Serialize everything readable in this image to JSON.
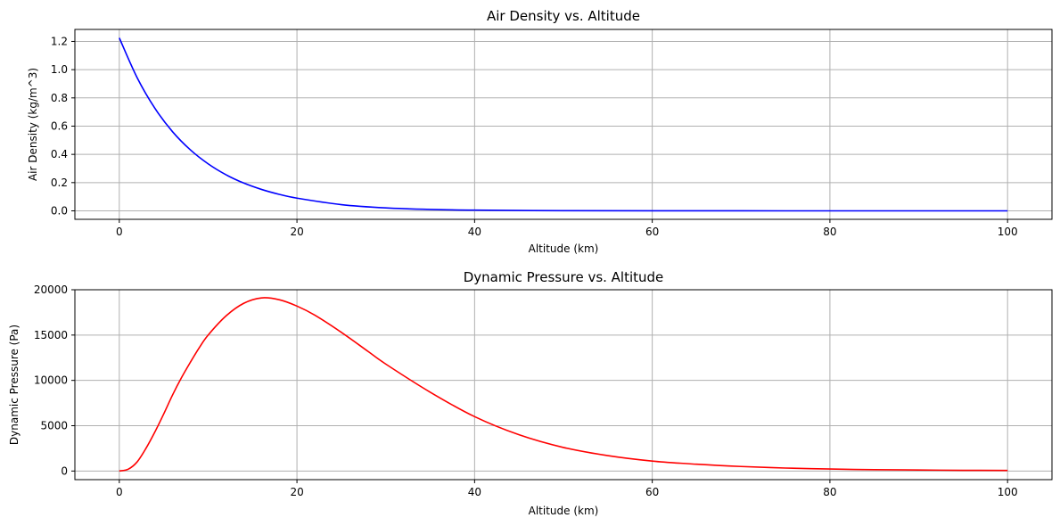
{
  "chart_data": [
    {
      "type": "line",
      "title": "Air Density vs. Altitude",
      "xlabel": "Altitude (km)",
      "ylabel": "Air Density (kg/m^3)",
      "xlim": [
        -5,
        105
      ],
      "ylim": [
        -0.06,
        1.285
      ],
      "xticks": [
        0,
        20,
        40,
        60,
        80,
        100
      ],
      "yticks": [
        0.0,
        0.2,
        0.4,
        0.6,
        0.8,
        1.0,
        1.2
      ],
      "ytick_labels": [
        "0.0",
        "0.2",
        "0.4",
        "0.6",
        "0.8",
        "1.0",
        "1.2"
      ],
      "grid": true,
      "series": [
        {
          "color": "#0000ff",
          "x": [
            0,
            2,
            4,
            6,
            8,
            10,
            12,
            14,
            16,
            18,
            20,
            25,
            30,
            35,
            40,
            50,
            60,
            70,
            80,
            90,
            100
          ],
          "y": [
            1.225,
            0.944,
            0.727,
            0.56,
            0.432,
            0.333,
            0.256,
            0.197,
            0.152,
            0.117,
            0.09,
            0.044,
            0.021,
            0.01,
            0.005,
            0.0012,
            0.0003,
            0.0001,
            0.0,
            0.0,
            0.0
          ]
        }
      ]
    },
    {
      "type": "line",
      "title": "Dynamic Pressure vs. Altitude",
      "xlabel": "Altitude (km)",
      "ylabel": "Dynamic Pressure (Pa)",
      "xlim": [
        -5,
        105
      ],
      "ylim": [
        -950,
        20000
      ],
      "xticks": [
        0,
        20,
        40,
        60,
        80,
        100
      ],
      "yticks": [
        0,
        5000,
        10000,
        15000,
        20000
      ],
      "ytick_labels": [
        "0",
        "5000",
        "10000",
        "15000",
        "20000"
      ],
      "grid": true,
      "series": [
        {
          "color": "#ff0000",
          "x": [
            0,
            1,
            2,
            3,
            4,
            5,
            6,
            7,
            8,
            9,
            10,
            12,
            14,
            16,
            18,
            20,
            22,
            25,
            28,
            30,
            35,
            40,
            45,
            50,
            55,
            60,
            65,
            70,
            75,
            80,
            85,
            90,
            95,
            100
          ],
          "y": [
            0,
            200,
            1000,
            2500,
            4300,
            6300,
            8400,
            10300,
            12000,
            13600,
            15000,
            17100,
            18500,
            19100,
            18900,
            18200,
            17200,
            15300,
            13200,
            11800,
            8700,
            6000,
            4000,
            2600,
            1700,
            1100,
            750,
            500,
            330,
            220,
            150,
            110,
            80,
            60
          ]
        }
      ]
    }
  ]
}
